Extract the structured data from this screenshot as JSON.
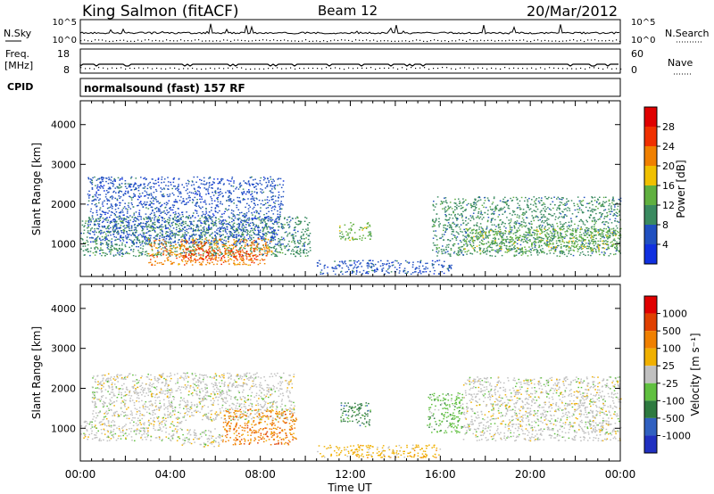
{
  "header": {
    "site": "King Salmon (fitACF)",
    "beam": "Beam 12",
    "date": "20/Mar/2012"
  },
  "strip_nsky": {
    "left_label": "N.Sky",
    "left_ticks": [
      "10^5",
      "10^0"
    ],
    "right_label": "N.Search",
    "right_ticks": [
      "10^5",
      "10^0"
    ]
  },
  "strip_freq": {
    "left_label_1": "Freq.",
    "left_label_2": "[MHz]",
    "left_ticks": [
      "18",
      "8"
    ],
    "right_label": "Nave",
    "right_ticks": [
      "60",
      "0"
    ]
  },
  "cpid": {
    "label": "CPID",
    "value": "normalsound (fast) 157 RF"
  },
  "colors": {
    "power": [
      "#1030e0",
      "#2050c0",
      "#3a8a60",
      "#60b040",
      "#f0c000",
      "#f08000",
      "#f03000",
      "#e00000"
    ],
    "velocity": [
      "#2030c0",
      "#3060c0",
      "#2e7a40",
      "#60c040",
      "#c0c0c0",
      "#f0b000",
      "#f08000",
      "#e04000",
      "#e00000"
    ]
  },
  "chart_data": [
    {
      "type": "heatmap",
      "panel": "power",
      "ylabel": "Slant Range [km]",
      "xlabel": "",
      "ylim": [
        180,
        4600
      ],
      "y_ticks": [
        1000,
        2000,
        3000,
        4000
      ],
      "xlim": [
        0,
        24
      ],
      "colorbar_label": "Power [dB]",
      "colorbar_ticks": [
        "28",
        "24",
        "20",
        "16",
        "12",
        "8",
        "4"
      ],
      "regions": [
        {
          "t0": 0.0,
          "t1": 10.2,
          "r0": 700,
          "r1": 1700,
          "level": 2
        },
        {
          "t0": 0.3,
          "t1": 9.0,
          "r0": 1000,
          "r1": 2700,
          "level": 1
        },
        {
          "t0": 3.0,
          "t1": 8.5,
          "r0": 480,
          "r1": 1150,
          "level": 5
        },
        {
          "t0": 4.6,
          "t1": 7.8,
          "r0": 600,
          "r1": 900,
          "level": 6
        },
        {
          "t0": 11.5,
          "t1": 12.9,
          "r0": 1100,
          "r1": 1550,
          "level": 3
        },
        {
          "t0": 15.6,
          "t1": 24.0,
          "r0": 700,
          "r1": 2200,
          "level": 2
        },
        {
          "t0": 17.0,
          "t1": 24.0,
          "r0": 800,
          "r1": 1400,
          "level": 3
        },
        {
          "t0": 10.5,
          "t1": 16.5,
          "r0": 250,
          "r1": 600,
          "level": 1
        }
      ]
    },
    {
      "type": "heatmap",
      "panel": "velocity",
      "ylabel": "Slant Range [km]",
      "xlabel": "Time UT",
      "ylim": [
        180,
        4600
      ],
      "y_ticks": [
        1000,
        2000,
        3000,
        4000
      ],
      "xlim": [
        0,
        24
      ],
      "x_ticks": [
        "00:00",
        "04:00",
        "08:00",
        "12:00",
        "16:00",
        "20:00",
        "00:00"
      ],
      "colorbar_label": "Velocity [m s⁻¹]",
      "colorbar_ticks": [
        "1000",
        "500",
        "100",
        "25",
        "-25",
        "-100",
        "-500",
        "-1000"
      ],
      "regions": [
        {
          "t0": 0.0,
          "t1": 4.5,
          "r0": 700,
          "r1": 1200,
          "level": 4
        },
        {
          "t0": 0.5,
          "t1": 9.5,
          "r0": 1200,
          "r1": 2400,
          "level": 4
        },
        {
          "t0": 4.5,
          "t1": 6.3,
          "r0": 550,
          "r1": 1000,
          "level": 4
        },
        {
          "t0": 6.3,
          "t1": 9.6,
          "r0": 600,
          "r1": 1500,
          "level": 6
        },
        {
          "t0": 11.5,
          "t1": 12.9,
          "r0": 1050,
          "r1": 1650,
          "level": 2
        },
        {
          "t0": 15.4,
          "t1": 17.0,
          "r0": 900,
          "r1": 1900,
          "level": 3
        },
        {
          "t0": 17.0,
          "t1": 24.0,
          "r0": 700,
          "r1": 2300,
          "level": 4
        },
        {
          "t0": 10.5,
          "t1": 16.0,
          "r0": 280,
          "r1": 600,
          "level": 5
        }
      ]
    }
  ]
}
